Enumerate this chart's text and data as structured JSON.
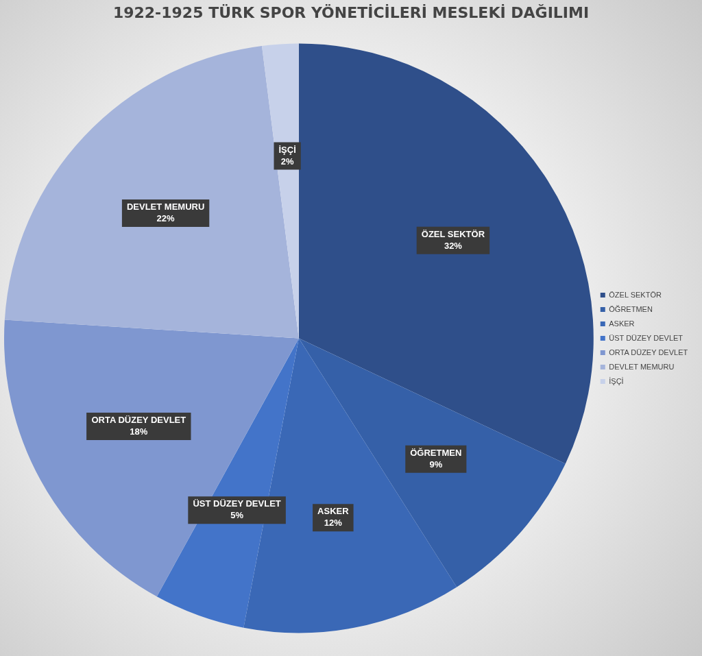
{
  "chart_data": {
    "type": "pie",
    "title": "1922-1925 TÜRK SPOR YÖNETİCİLERİ MESLEKİ DAĞILIMI",
    "categories": [
      "ÖZEL SEKTÖR",
      "ÖĞRETMEN",
      "ASKER",
      "ÜST DÜZEY DEVLET",
      "ORTA DÜZEY DEVLET",
      "DEVLET MEMURU",
      "İŞÇİ"
    ],
    "values": [
      32,
      9,
      12,
      5,
      18,
      22,
      2
    ],
    "value_labels": [
      "32%",
      "9%",
      "12%",
      "5%",
      "18%",
      "22%",
      "2%"
    ],
    "colors": [
      "#2f4f8a",
      "#3560a8",
      "#3a68b6",
      "#4374c9",
      "#7f97d0",
      "#a5b4db",
      "#c7d1ea"
    ],
    "legend": "right"
  }
}
